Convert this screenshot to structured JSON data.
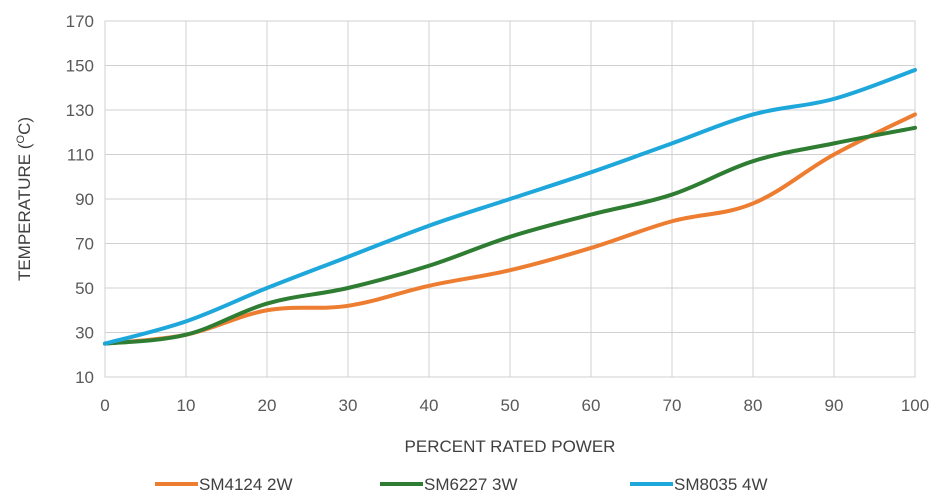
{
  "chart_data": {
    "type": "line",
    "title": "",
    "xlabel": "PERCENT RATED POWER",
    "ylabel": "TEMPERATURE (",
    "ylabel_superscript": "O",
    "ylabel_suffix": "C)",
    "x": [
      0,
      10,
      20,
      30,
      40,
      50,
      60,
      70,
      80,
      90,
      100
    ],
    "xlim": [
      0,
      100
    ],
    "ylim": [
      10,
      170
    ],
    "xticks": [
      "0",
      "10",
      "20",
      "30",
      "40",
      "50",
      "60",
      "70",
      "80",
      "90",
      "100"
    ],
    "yticks": [
      "10",
      "30",
      "50",
      "70",
      "90",
      "110",
      "130",
      "150",
      "170"
    ],
    "grid": true,
    "legend_position": "bottom",
    "series": [
      {
        "name": "SM4124 2W",
        "color": "#ed7d31",
        "values": [
          25,
          29,
          40,
          42,
          51,
          58,
          68,
          80,
          88,
          110,
          128
        ]
      },
      {
        "name": "SM6227 3W",
        "color": "#2e7d32",
        "values": [
          25,
          29,
          43,
          50,
          60,
          73,
          83,
          92,
          107,
          115,
          122
        ]
      },
      {
        "name": "SM8035 4W",
        "color": "#1ea7db",
        "values": [
          25,
          35,
          50,
          64,
          78,
          90,
          102,
          115,
          128,
          135,
          148
        ]
      }
    ],
    "colors": {
      "grid": "#d0d0d0",
      "axis_text": "#595959",
      "plot_border": "#d0d0d0"
    }
  }
}
